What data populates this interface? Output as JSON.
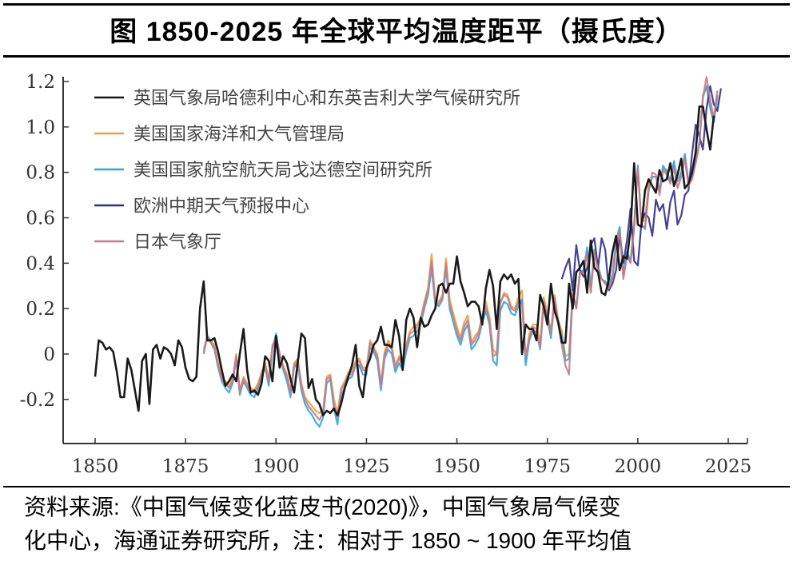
{
  "title": "图  1850-2025 年全球平均温度距平（摄氏度）",
  "source_line1": "资料来源:《中国气候变化蓝皮书(2020)》，中国气象局气候变",
  "source_line2": "化中心，海通证券研究所，注：相对于 1850 ~ 1900 年平均值",
  "chart_data": {
    "type": "line",
    "title": "1850-2025 年全球平均温度距平（摄氏度）",
    "xlabel": "",
    "ylabel": "",
    "xlim": [
      1850,
      2025
    ],
    "ylim": [
      -0.39,
      1.2
    ],
    "grid": false,
    "legend_position": "top-left",
    "x_ticks": [
      1850,
      1875,
      1900,
      1925,
      1950,
      1975,
      2000,
      2025
    ],
    "x_tick_labels": [
      "1850",
      "1875",
      "1900",
      "1925",
      "1950",
      "1975",
      "2000",
      "2025"
    ],
    "y_ticks": [
      1.2,
      1.0,
      0.8,
      0.6,
      0.4,
      0.2,
      0,
      -0.2
    ],
    "y_tick_labels": [
      "1.2",
      "1.0",
      "0.8",
      "0.6",
      "0.4",
      "0.2",
      "0",
      "-0.2"
    ],
    "series": [
      {
        "name": "英国气象局哈德利中心和东英吉利大学气候研究所",
        "color": "#1a1a1a",
        "start_year": 1850,
        "values": [
          -0.1,
          0.06,
          0.05,
          0.02,
          0.03,
          0.01,
          -0.08,
          -0.19,
          -0.19,
          -0.02,
          -0.07,
          -0.16,
          -0.25,
          -0.03,
          0.0,
          -0.22,
          0.02,
          0.04,
          -0.02,
          0.03,
          0.02,
          0.0,
          -0.05,
          0.06,
          0.03,
          -0.06,
          -0.11,
          -0.12,
          -0.1,
          0.2,
          0.32,
          0.06,
          0.06,
          0.07,
          0.01,
          -0.07,
          -0.14,
          -0.12,
          -0.09,
          -0.12,
          0.0,
          0.11,
          -0.07,
          -0.17,
          -0.16,
          -0.18,
          -0.13,
          -0.01,
          -0.03,
          -0.12,
          0.08,
          -0.06,
          -0.01,
          -0.04,
          -0.11,
          -0.17,
          -0.04,
          0.09,
          0.07,
          -0.15,
          -0.11,
          -0.2,
          -0.22,
          -0.27,
          -0.25,
          -0.26,
          -0.24,
          -0.27,
          -0.22,
          -0.15,
          -0.1,
          -0.05,
          0.04,
          -0.14,
          -0.19,
          -0.06,
          -0.02,
          0.04,
          0.06,
          0.12,
          0.04,
          0.04,
          0.03,
          0.15,
          0.08,
          -0.07,
          0.15,
          0.2,
          0.16,
          0.03,
          0.16,
          0.12,
          0.13,
          0.17,
          0.2,
          0.3,
          0.31,
          0.27,
          0.31,
          0.31,
          0.43,
          0.32,
          0.27,
          0.21,
          0.23,
          0.23,
          0.21,
          0.13,
          0.29,
          0.37,
          0.3,
          0.11,
          0.32,
          0.35,
          0.33,
          0.35,
          0.31,
          0.33,
          0.0,
          0.13,
          0.11,
          0.11,
          0.06,
          0.26,
          0.21,
          0.13,
          0.31,
          0.19,
          0.14,
          0.05,
          0.05,
          0.31,
          0.2,
          0.36,
          0.38,
          0.41,
          0.27,
          0.5,
          0.38,
          0.36,
          0.27,
          0.26,
          0.33,
          0.45,
          0.52,
          0.37,
          0.43,
          0.42,
          0.55,
          0.84,
          0.57,
          0.56,
          0.72,
          0.77,
          0.74,
          0.71,
          0.81,
          0.76,
          0.77,
          0.84,
          0.74,
          0.79,
          0.86,
          0.73,
          0.75,
          0.8,
          0.89,
          1.09,
          1.09,
          0.99,
          0.9,
          1.05
        ]
      },
      {
        "name": "美国国家海洋和大气管理局",
        "color": "#e8a13a",
        "start_year": 1880,
        "values": [
          0.02,
          0.08,
          0.06,
          0.04,
          -0.04,
          -0.1,
          -0.12,
          -0.14,
          -0.11,
          0.0,
          -0.16,
          -0.1,
          -0.13,
          -0.15,
          -0.16,
          -0.13,
          -0.08,
          -0.04,
          -0.11,
          0.04,
          0.07,
          0.0,
          -0.05,
          -0.09,
          -0.16,
          -0.04,
          -0.02,
          -0.13,
          -0.19,
          -0.21,
          -0.23,
          -0.25,
          -0.26,
          -0.25,
          -0.1,
          -0.09,
          -0.2,
          -0.26,
          -0.15,
          -0.12,
          -0.08,
          -0.08,
          -0.03,
          -0.02,
          -0.06,
          -0.06,
          0.06,
          0.03,
          0.0,
          -0.13,
          0.01,
          0.06,
          0.03,
          -0.05,
          -0.01,
          -0.04,
          0.04,
          0.1,
          0.12,
          0.13,
          0.16,
          0.23,
          0.29,
          0.44,
          0.24,
          0.23,
          0.26,
          0.42,
          0.24,
          0.18,
          0.12,
          0.07,
          0.14,
          0.17,
          0.05,
          0.08,
          0.1,
          0.17,
          0.23,
          0.16,
          0.02,
          0.0,
          0.22,
          0.27,
          0.26,
          0.21,
          0.2,
          0.25,
          0.28,
          -0.03,
          0.09,
          0.13,
          0.13,
          0.05,
          0.25,
          0.18,
          0.1,
          0.26,
          0.15,
          0.1,
          -0.01,
          0.0,
          0.28,
          0.2,
          0.36,
          0.36,
          0.45,
          0.27,
          0.44,
          0.37,
          0.33,
          0.31,
          0.3,
          0.34,
          0.48,
          0.55,
          0.35,
          0.45,
          0.41,
          0.57,
          0.82,
          0.58,
          0.59,
          0.75,
          0.78,
          0.78,
          0.72,
          0.82,
          0.81,
          0.76,
          0.84,
          0.76,
          0.8,
          0.88,
          0.75,
          0.77,
          0.85,
          0.93,
          1.14,
          1.18,
          1.08,
          1.02,
          1.13
        ]
      },
      {
        "name": "美国国家航空航天局戈达德空间研究所",
        "color": "#2ea7de",
        "start_year": 1880,
        "values": [
          0.0,
          0.08,
          0.05,
          0.02,
          -0.06,
          -0.12,
          -0.15,
          -0.17,
          -0.13,
          -0.02,
          -0.18,
          -0.12,
          -0.15,
          -0.18,
          -0.19,
          -0.15,
          -0.1,
          -0.06,
          -0.14,
          0.02,
          0.09,
          0.0,
          -0.07,
          -0.12,
          -0.19,
          -0.06,
          -0.04,
          -0.16,
          -0.22,
          -0.25,
          -0.27,
          -0.3,
          -0.32,
          -0.28,
          -0.13,
          -0.11,
          -0.24,
          -0.31,
          -0.18,
          -0.15,
          -0.11,
          -0.1,
          -0.05,
          -0.05,
          -0.09,
          -0.09,
          0.03,
          0.01,
          -0.03,
          -0.16,
          -0.02,
          0.02,
          0.0,
          -0.08,
          -0.04,
          -0.07,
          0.01,
          0.07,
          0.08,
          0.1,
          0.13,
          0.2,
          0.26,
          0.38,
          0.22,
          0.21,
          0.24,
          0.38,
          0.2,
          0.14,
          0.08,
          0.04,
          0.1,
          0.13,
          0.02,
          0.04,
          0.07,
          0.14,
          0.19,
          0.13,
          -0.03,
          -0.05,
          0.19,
          0.23,
          0.22,
          0.18,
          0.17,
          0.21,
          0.24,
          -0.05,
          0.06,
          0.1,
          0.1,
          0.02,
          0.22,
          0.15,
          0.07,
          0.24,
          0.13,
          0.08,
          -0.03,
          -0.02,
          0.27,
          0.2,
          0.36,
          0.37,
          0.47,
          0.29,
          0.46,
          0.39,
          0.33,
          0.32,
          0.3,
          0.35,
          0.5,
          0.56,
          0.35,
          0.45,
          0.41,
          0.57,
          0.83,
          0.57,
          0.55,
          0.72,
          0.78,
          0.78,
          0.72,
          0.83,
          0.8,
          0.76,
          0.85,
          0.76,
          0.8,
          0.88,
          0.76,
          0.78,
          0.85,
          0.93,
          1.13,
          1.18,
          1.09,
          1.02,
          1.14
        ]
      },
      {
        "name": "欧洲中期天气预报中心",
        "color": "#2e2f8c",
        "start_year": 1979,
        "values": [
          0.33,
          0.38,
          0.42,
          0.28,
          0.48,
          0.37,
          0.34,
          0.38,
          0.48,
          0.51,
          0.38,
          0.51,
          0.46,
          0.28,
          0.31,
          0.37,
          0.52,
          0.4,
          0.5,
          0.64,
          0.41,
          0.39,
          0.58,
          0.62,
          0.6,
          0.52,
          0.68,
          0.63,
          0.66,
          0.55,
          0.67,
          0.72,
          0.57,
          0.61,
          0.7,
          0.72,
          0.88,
          1.01,
          0.96,
          0.9,
          1.08,
          1.18,
          1.1,
          1.07,
          1.17
        ]
      },
      {
        "name": "日本气象厅",
        "color": "#c97a8a",
        "start_year": 1880,
        "values": [
          0.01,
          0.07,
          0.05,
          0.03,
          -0.05,
          -0.11,
          -0.13,
          -0.15,
          -0.12,
          -0.01,
          -0.17,
          -0.11,
          -0.14,
          -0.16,
          -0.17,
          -0.14,
          -0.09,
          -0.05,
          -0.12,
          0.03,
          0.08,
          0.0,
          -0.06,
          -0.1,
          -0.17,
          -0.05,
          -0.03,
          -0.14,
          -0.2,
          -0.23,
          -0.25,
          -0.27,
          -0.29,
          -0.26,
          -0.11,
          -0.1,
          -0.22,
          -0.28,
          -0.16,
          -0.13,
          -0.09,
          -0.09,
          -0.04,
          -0.03,
          -0.07,
          -0.07,
          0.05,
          0.02,
          -0.01,
          -0.14,
          0.0,
          0.04,
          0.02,
          -0.06,
          -0.02,
          -0.05,
          0.03,
          0.09,
          0.1,
          0.12,
          0.15,
          0.22,
          0.28,
          0.41,
          0.23,
          0.22,
          0.25,
          0.4,
          0.22,
          0.16,
          0.1,
          0.06,
          0.12,
          0.15,
          0.04,
          0.06,
          0.09,
          0.16,
          0.21,
          0.15,
          -0.01,
          0.0,
          0.23,
          0.26,
          0.25,
          0.2,
          0.19,
          0.23,
          0.22,
          -0.01,
          0.07,
          0.12,
          0.11,
          0.03,
          0.23,
          0.17,
          0.09,
          0.25,
          0.14,
          0.04,
          -0.05,
          -0.09,
          0.27,
          0.2,
          0.36,
          0.36,
          0.44,
          0.27,
          0.45,
          0.37,
          0.33,
          0.31,
          0.29,
          0.33,
          0.47,
          0.54,
          0.33,
          0.43,
          0.4,
          0.55,
          0.82,
          0.56,
          0.56,
          0.72,
          0.8,
          0.79,
          0.7,
          0.81,
          0.79,
          0.75,
          0.82,
          0.73,
          0.78,
          0.86,
          0.74,
          0.77,
          0.84,
          0.92,
          1.13,
          1.22,
          1.12,
          1.04,
          1.16
        ]
      }
    ]
  }
}
